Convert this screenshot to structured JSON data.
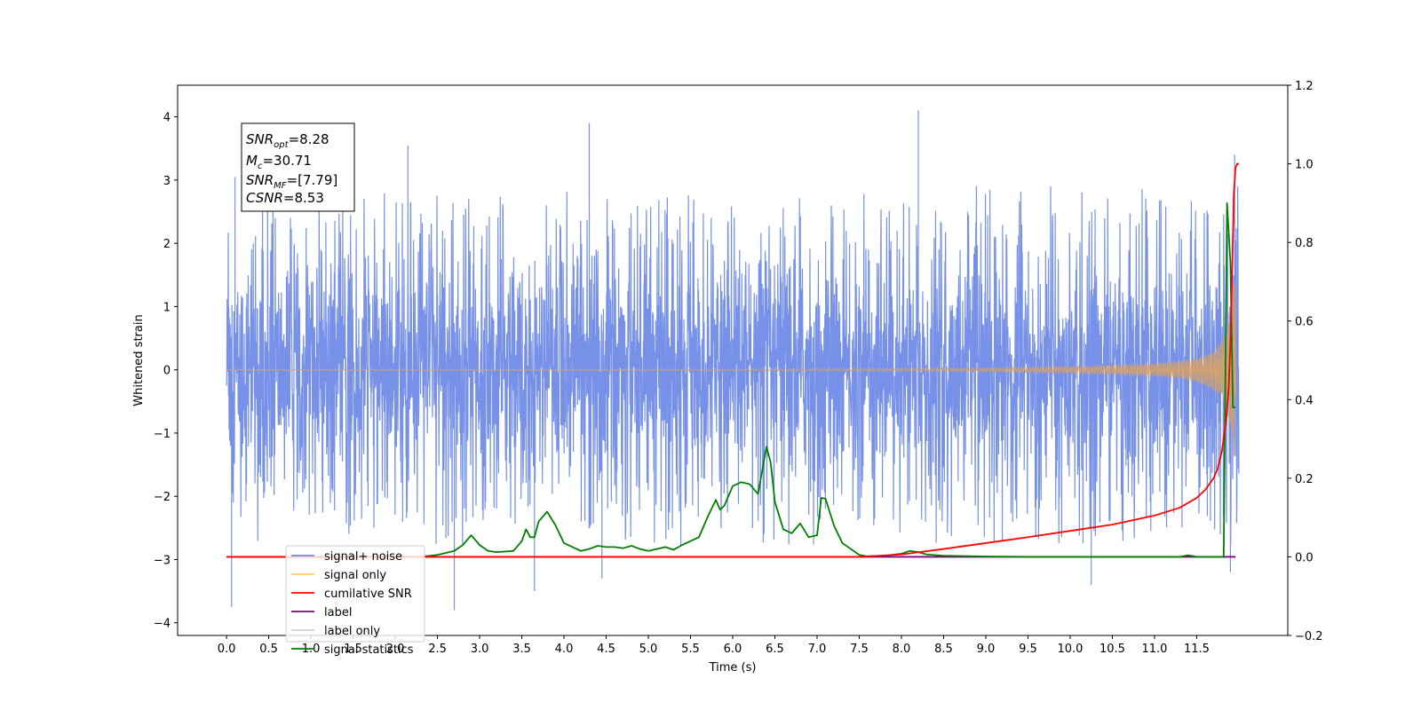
{
  "chart_data": {
    "type": "line",
    "xlabel": "Time (s)",
    "ylabel_left": "Whitened strain",
    "xlim": [
      -0.58,
      12.58
    ],
    "ylim_left": [
      -4.2,
      4.5
    ],
    "ylim_right": [
      -0.2,
      1.2
    ],
    "x_ticks": [
      "0.0",
      "0.5",
      "1.0",
      "1.5",
      "2.0",
      "2.5",
      "3.0",
      "3.5",
      "4.0",
      "4.5",
      "5.0",
      "5.5",
      "6.0",
      "6.5",
      "7.0",
      "7.5",
      "8.0",
      "8.5",
      "9.0",
      "9.5",
      "10.0",
      "10.5",
      "11.0",
      "11.5"
    ],
    "y_ticks_left": [
      "4",
      "3",
      "2",
      "1",
      "0",
      "−1",
      "−2",
      "−3",
      "−4"
    ],
    "y_ticks_right": [
      "1.2",
      "1.0",
      "0.8",
      "0.6",
      "0.4",
      "0.2",
      "0.0",
      "−0.2"
    ],
    "annotation": {
      "lines": [
        {
          "base": "SNR",
          "sub": "opt",
          "value": "=8.28"
        },
        {
          "base": "M",
          "sub": "c",
          "value": "=30.71"
        },
        {
          "base": "SNR",
          "sub": "MF",
          "value": "=[7.79]"
        },
        {
          "base": "CSNR",
          "sub": "",
          "value": "=8.53"
        }
      ]
    },
    "legend": {
      "placement": "lower-left",
      "entries": [
        {
          "label": "signal+ noise",
          "color": "#6f8be6"
        },
        {
          "label": "signal only",
          "color": "#ffc870"
        },
        {
          "label": "cumilative SNR",
          "color": "#ff0000"
        },
        {
          "label": "label",
          "color": "#800080"
        },
        {
          "label": "label only",
          "color": "#d0d0d0"
        },
        {
          "label": "signal statistics",
          "color": "#008000"
        }
      ]
    },
    "series": [
      {
        "name": "signal+ noise",
        "axis": "left",
        "description_of_values": "whitened strain noise, amplitude approx ±2 with spikes to ±4",
        "x_range": [
          0.0,
          12.0
        ],
        "extreme_spikes": [
          [
            0.06,
            -3.75
          ],
          [
            0.1,
            3.05
          ],
          [
            2.15,
            3.55
          ],
          [
            2.7,
            -3.8
          ],
          [
            3.65,
            -3.5
          ],
          [
            4.3,
            3.9
          ],
          [
            4.45,
            -3.3
          ],
          [
            8.2,
            4.1
          ],
          [
            10.25,
            -3.4
          ],
          [
            11.95,
            3.4
          ],
          [
            11.9,
            -3.2
          ]
        ]
      },
      {
        "name": "signal only",
        "axis": "left",
        "x": [
          0.0,
          6.0,
          8.0,
          9.0,
          10.0,
          10.5,
          11.0,
          11.3,
          11.5,
          11.6,
          11.7,
          11.8,
          11.85,
          11.9,
          11.93,
          11.96
        ],
        "amplitude": [
          0.005,
          0.01,
          0.02,
          0.03,
          0.05,
          0.07,
          0.1,
          0.14,
          0.19,
          0.24,
          0.32,
          0.45,
          0.6,
          0.95,
          1.35,
          1.6
        ]
      },
      {
        "name": "cumilative SNR",
        "axis": "right",
        "x": [
          0.0,
          7.5,
          8.0,
          8.5,
          9.0,
          9.5,
          10.0,
          10.5,
          11.0,
          11.3,
          11.5,
          11.6,
          11.7,
          11.75,
          11.8,
          11.85,
          11.88,
          11.9,
          11.92,
          11.94,
          11.96,
          11.98,
          12.0
        ],
        "values": [
          0.0,
          0.0,
          0.006,
          0.02,
          0.035,
          0.05,
          0.066,
          0.082,
          0.105,
          0.125,
          0.15,
          0.17,
          0.2,
          0.225,
          0.27,
          0.35,
          0.43,
          0.55,
          0.72,
          0.92,
          0.99,
          1.0,
          1.0
        ]
      },
      {
        "name": "label",
        "axis": "right",
        "x": [
          0.0,
          11.96
        ],
        "values": [
          0.0,
          0.0
        ]
      },
      {
        "name": "signal statistics",
        "axis": "right",
        "x": [
          0.0,
          2.3,
          2.5,
          2.6,
          2.7,
          2.8,
          2.9,
          3.0,
          3.1,
          3.2,
          3.4,
          3.5,
          3.55,
          3.6,
          3.65,
          3.7,
          3.8,
          3.9,
          4.0,
          4.1,
          4.2,
          4.3,
          4.4,
          4.5,
          4.6,
          4.7,
          4.8,
          4.9,
          5.0,
          5.1,
          5.2,
          5.3,
          5.4,
          5.5,
          5.6,
          5.7,
          5.8,
          5.85,
          5.9,
          6.0,
          6.1,
          6.2,
          6.3,
          6.4,
          6.45,
          6.5,
          6.6,
          6.7,
          6.8,
          6.9,
          7.0,
          7.05,
          7.1,
          7.2,
          7.3,
          7.4,
          7.5,
          7.6,
          7.8,
          8.0,
          8.1,
          8.2,
          8.3,
          8.5,
          9.0,
          9.5,
          11.3,
          11.4,
          11.5,
          11.82,
          11.86,
          11.9,
          11.93,
          11.96
        ],
        "values": [
          0.0,
          0.0,
          0.005,
          0.01,
          0.015,
          0.03,
          0.055,
          0.03,
          0.015,
          0.012,
          0.015,
          0.04,
          0.07,
          0.05,
          0.05,
          0.09,
          0.115,
          0.08,
          0.035,
          0.025,
          0.015,
          0.02,
          0.028,
          0.025,
          0.025,
          0.022,
          0.028,
          0.02,
          0.015,
          0.02,
          0.025,
          0.018,
          0.03,
          0.04,
          0.05,
          0.1,
          0.145,
          0.12,
          0.13,
          0.18,
          0.19,
          0.185,
          0.16,
          0.28,
          0.24,
          0.14,
          0.07,
          0.06,
          0.085,
          0.05,
          0.055,
          0.15,
          0.148,
          0.08,
          0.035,
          0.02,
          0.005,
          0.001,
          0.003,
          0.008,
          0.015,
          0.012,
          0.006,
          0.003,
          0.001,
          0.0,
          0.0,
          0.004,
          0.0,
          0.0,
          0.9,
          0.75,
          0.38,
          0.38
        ]
      }
    ]
  }
}
